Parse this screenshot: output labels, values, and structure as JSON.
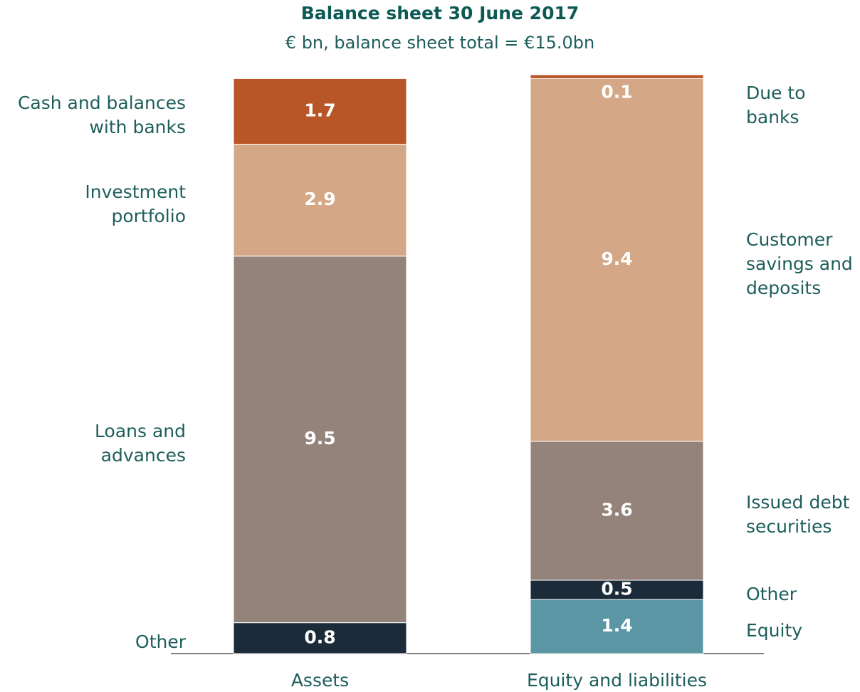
{
  "chart_data": {
    "type": "stacked-bar",
    "title": "Balance sheet 30 June 2017",
    "subtitle": "€ bn, balance sheet total = €15.0bn",
    "categories": [
      "Assets",
      "Equity and liabilities"
    ],
    "stacks": [
      [
        {
          "name": "Other",
          "color": "#1b2b3a",
          "value": 0.8
        },
        {
          "name": "Loans and\nadvances",
          "color": "#93837a",
          "value": 9.5
        },
        {
          "name": "Investment\nportfolio",
          "color": "#d4a886",
          "value": 2.9
        },
        {
          "name": "Cash and balances\nwith banks",
          "color": "#b85627",
          "value": 1.7
        }
      ],
      [
        {
          "name": "Equity",
          "color": "#5b96a5",
          "value": 1.4
        },
        {
          "name": "Other",
          "color": "#1b2b3a",
          "value": 0.5
        },
        {
          "name": "Issued debt\nsecurities",
          "color": "#93837a",
          "value": 3.6
        },
        {
          "name": "Customer\nsavings and\ndeposits",
          "color": "#d4a886",
          "value": 9.4
        },
        {
          "name": "Due to\nbanks",
          "color": "#b85627",
          "value": 0.1
        }
      ]
    ]
  }
}
